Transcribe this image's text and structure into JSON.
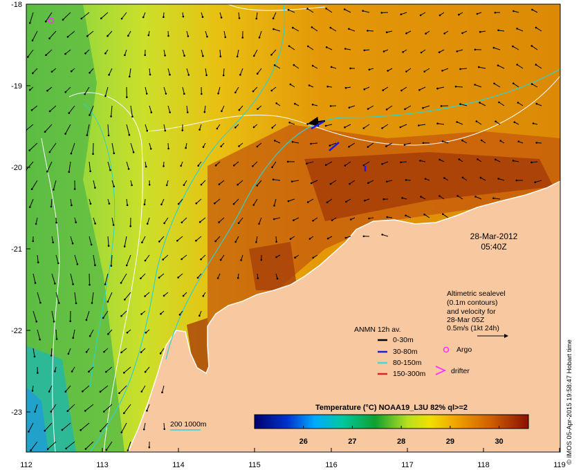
{
  "map": {
    "x_ticks": [
      "112",
      "113",
      "114",
      "115",
      "116",
      "117",
      "118",
      "119"
    ],
    "y_ticks": [
      "-18",
      "-19",
      "-20",
      "-21",
      "-22",
      "-23"
    ],
    "timestamp": {
      "date": "28-Mar-2012",
      "time": "05:40Z"
    },
    "altimetry_note": [
      "Altimetric sealevel",
      "(0.1m contours)",
      "and velocity for",
      "28-Mar 05Z",
      "0.5m/s (1kt 24h)"
    ],
    "anmn": {
      "title": "ANMN 12h av.",
      "items": [
        {
          "label": "0-30m",
          "color": "#000000"
        },
        {
          "label": "30-80m",
          "color": "#1a1ae6"
        },
        {
          "label": "80-150m",
          "color": "#33e0e0"
        },
        {
          "label": "150-300m",
          "color": "#e02020"
        }
      ]
    },
    "argo_label": "Argo",
    "drifter_label": "drifter",
    "depth_contour_label": "200  1000m",
    "colorbar": {
      "title": "Temperature (°C) NOAA19_L3U 82% ql>=2",
      "ticks": [
        "26",
        "27",
        "28",
        "29",
        "30"
      ],
      "range": [
        25.0,
        30.6
      ]
    },
    "credit": "© IMOS 05-Apr-2015 19:58:47 Hobart time",
    "colors": {
      "land": "#f8c8a0",
      "warm": "#b03c0c",
      "mid": "#e48c08",
      "cool": "#70c840",
      "coast_line": "#ffffff"
    }
  }
}
